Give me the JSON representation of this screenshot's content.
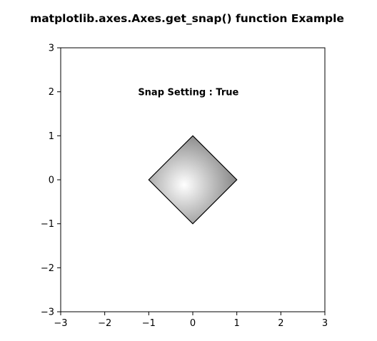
{
  "chart_data": {
    "type": "scatter",
    "title": "matplotlib.axes.Axes.get_snap() function Example",
    "xlabel": "",
    "ylabel": "",
    "xlim": [
      -3,
      3
    ],
    "ylim": [
      -3,
      3
    ],
    "grid": false,
    "x_ticks": [
      -3,
      -2,
      -1,
      0,
      1,
      2,
      3
    ],
    "y_ticks": [
      -3,
      -2,
      -1,
      0,
      1,
      2,
      3
    ],
    "x_tick_labels": [
      "−3",
      "−2",
      "−1",
      "0",
      "1",
      "2",
      "3"
    ],
    "y_tick_labels": [
      "−3",
      "−2",
      "−1",
      "0",
      "1",
      "2",
      "3"
    ],
    "shape": {
      "kind": "polygon",
      "vertices": [
        [
          0,
          1
        ],
        [
          1,
          0
        ],
        [
          0,
          -1
        ],
        [
          -1,
          0
        ]
      ],
      "fill": "radial-gradient",
      "fill_colors": [
        "#ffffff",
        "#7f7f7f"
      ],
      "edge_color": "#000000"
    },
    "annotation": {
      "text": "Snap Setting : True",
      "x": -0.1,
      "y": 2.0
    }
  }
}
